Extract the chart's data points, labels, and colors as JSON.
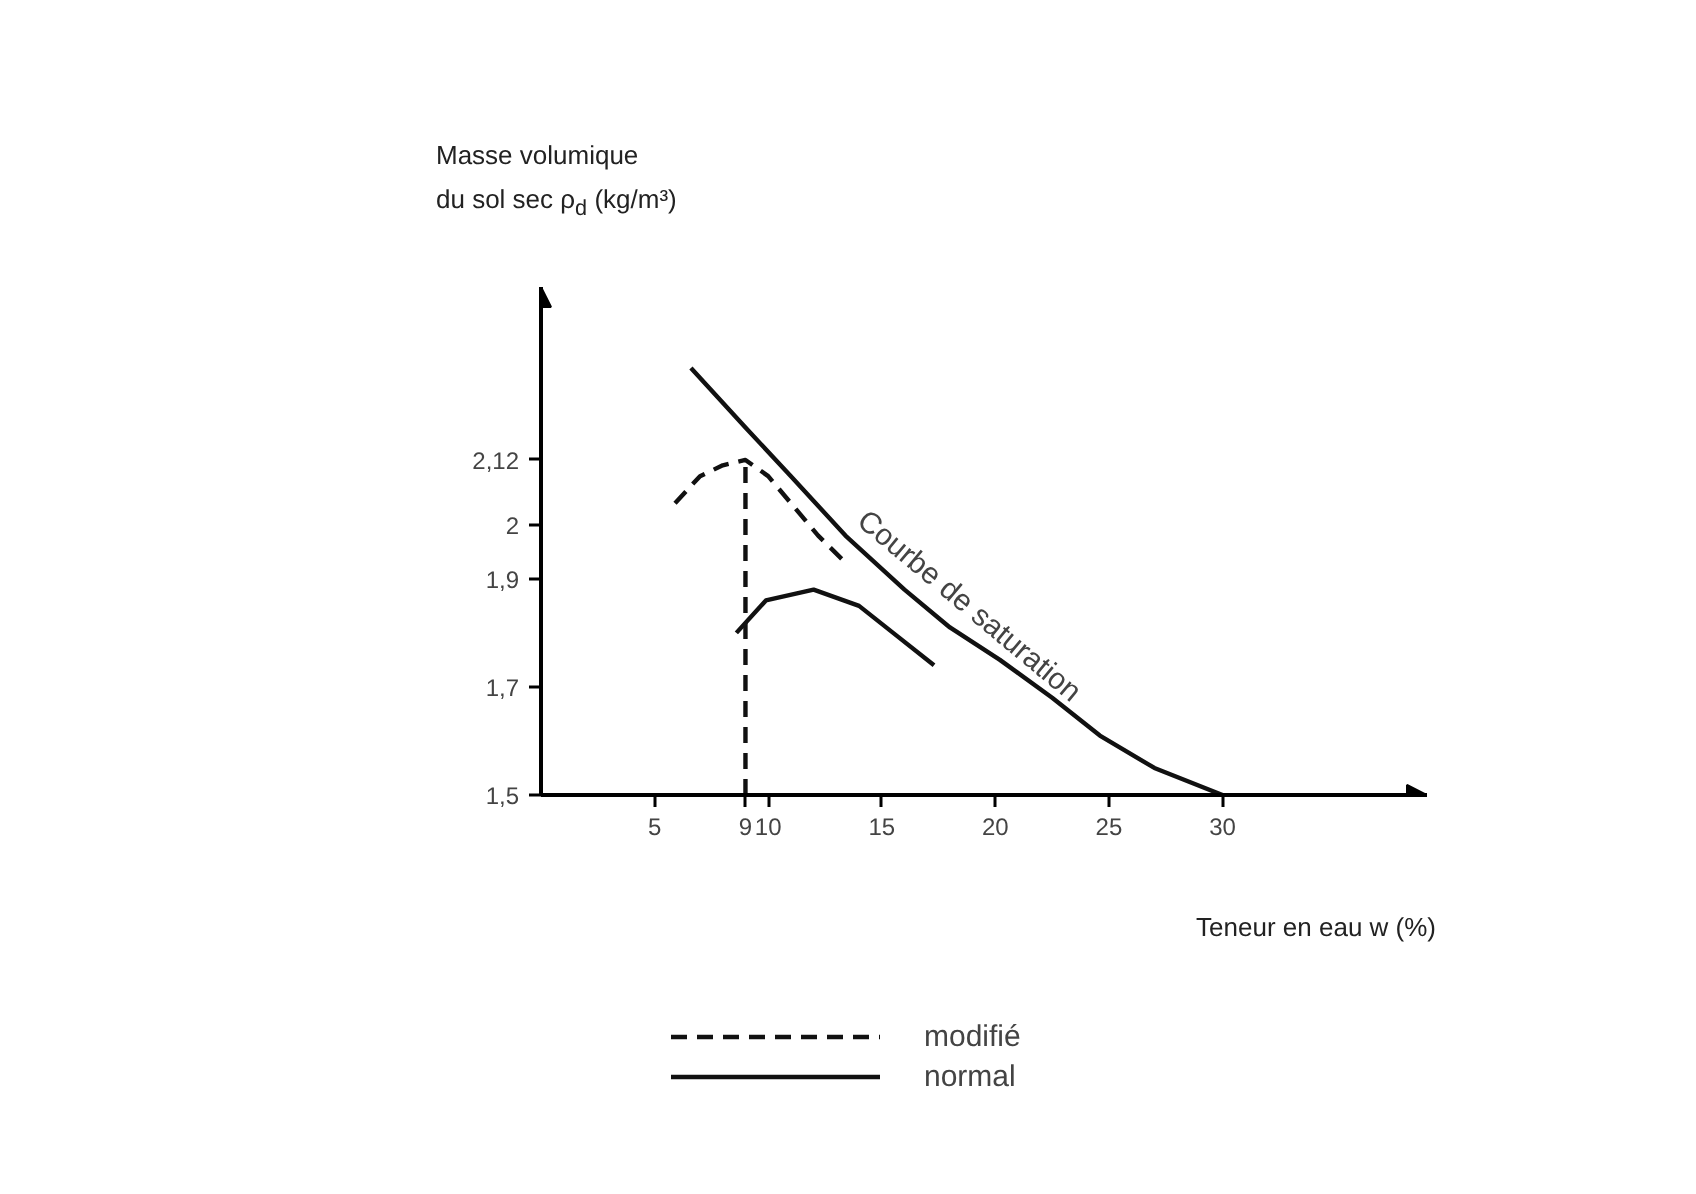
{
  "chart_data": {
    "type": "line",
    "xlabel": "Teneur en eau w (%)",
    "ylabel": "Masse volumique\ndu sol sec ρ$_{d}$ (kg/m³)",
    "xlim": [
      0,
      39
    ],
    "ylim": [
      1.5,
      2.44
    ],
    "xticks": [
      5,
      9,
      10,
      15,
      20,
      25,
      30
    ],
    "yticks": [
      {
        "value": 1.5,
        "label": "1,5"
      },
      {
        "value": 1.7,
        "label": "1,7"
      },
      {
        "value": 1.9,
        "label": "1,9"
      },
      {
        "value": 2,
        "label": "2"
      },
      {
        "value": 2.12,
        "label": "2,12"
      }
    ],
    "grid": false,
    "legend": "bottom",
    "series": [
      {
        "color": "#111111",
        "line_style": "solid",
        "x": [
          6.6,
          9,
          11,
          13.4,
          16,
          18,
          20.2,
          22.5,
          24.6,
          27,
          30
        ],
        "values": [
          2.29,
          2.18,
          2.09,
          1.98,
          1.88,
          1.81,
          1.75,
          1.68,
          1.61,
          1.55,
          1.5
        ]
      },
      {
        "name": "modifié",
        "color": "#111111",
        "line_style": "dashed",
        "x": [
          5.9,
          7,
          8,
          9,
          10,
          11,
          12.2,
          13.4
        ],
        "values": [
          2.04,
          2.09,
          2.11,
          2.12,
          2.09,
          2.04,
          1.98,
          1.93
        ]
      },
      {
        "name": "normal",
        "color": "#111111",
        "line_style": "solid",
        "x": [
          8.6,
          9.9,
          12,
          14,
          15.5,
          17.3
        ],
        "values": [
          1.8,
          1.86,
          1.88,
          1.85,
          1.8,
          1.74
        ]
      },
      {
        "color": "#111111",
        "line_style": "dashed",
        "x": [
          9,
          9
        ],
        "values": [
          1.5,
          2.12
        ]
      }
    ],
    "annotations": [
      "Courbe de saturation"
    ]
  }
}
